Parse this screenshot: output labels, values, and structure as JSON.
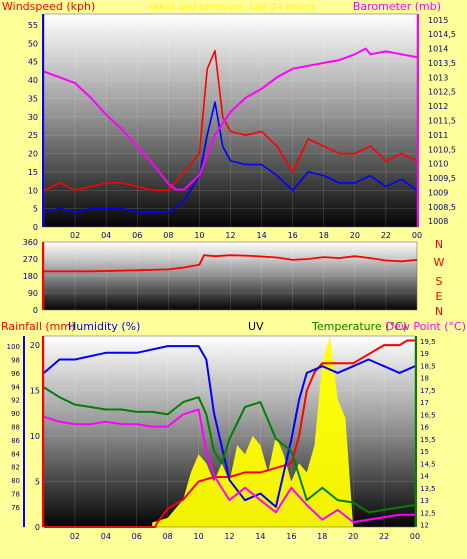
{
  "palette": {
    "background": "#ffff99",
    "wind_avg": "#0000ff",
    "wind_gust": "#ff0000",
    "barometer": "#ff00ff",
    "direction": "#ff0000",
    "rainfall": "#ff0000",
    "humidity": "#0000ff",
    "uv": "#ffff00",
    "temperature": "#008000",
    "dew_point": "#ff00ff",
    "tick_text": "#000080",
    "left_axis": "#0000ff",
    "right_axis": "#ff00ff"
  },
  "chart_data": [
    {
      "type": "line",
      "panel": "wind-barometer",
      "left_axis_label": "Windspeed (kph)",
      "right_axis_label": "Barometer (mb)",
      "center_title": "Wind and pressure, last 24 hours",
      "x_ticks": [
        "02",
        "04",
        "06",
        "08",
        "10",
        "12",
        "14",
        "16",
        "18",
        "20",
        "22",
        "00"
      ],
      "x_range": [
        0,
        24
      ],
      "left_ylim": [
        0,
        58
      ],
      "left_ticks": [
        0,
        5,
        10,
        15,
        20,
        25,
        30,
        35,
        40,
        45,
        50,
        55
      ],
      "right_ylim": [
        1007.8,
        1015.2
      ],
      "right_ticks": [
        "1008",
        "1008,5",
        "1009",
        "1009,5",
        "1010",
        "1010,5",
        "1011",
        "1011,5",
        "1012",
        "1012,5",
        "1013",
        "1013,5",
        "1014",
        "1014,5",
        "1015"
      ],
      "series": [
        {
          "key": "gust",
          "axis": "left",
          "x": [
            0,
            1,
            2,
            3,
            4,
            5,
            6,
            7,
            8,
            9,
            10,
            10.5,
            11,
            11.5,
            12,
            13,
            14,
            15,
            16,
            17,
            18,
            19,
            20,
            21,
            22,
            23,
            24
          ],
          "y": [
            10,
            12,
            10,
            11,
            12,
            12,
            11,
            10,
            10,
            15,
            20,
            43,
            48,
            30,
            26,
            25,
            26,
            22,
            15,
            24,
            22,
            20,
            20,
            22,
            18,
            20,
            18
          ]
        },
        {
          "key": "average",
          "axis": "left",
          "x": [
            0,
            1,
            2,
            3,
            4,
            5,
            6,
            7,
            8,
            9,
            10,
            10.5,
            11,
            11.5,
            12,
            13,
            14,
            15,
            16,
            17,
            18,
            19,
            20,
            21,
            22,
            23,
            24
          ],
          "y": [
            4,
            5,
            4,
            5,
            5,
            5,
            4,
            4,
            4,
            7,
            14,
            25,
            34,
            22,
            18,
            17,
            17,
            14,
            10,
            15,
            14,
            12,
            12,
            14,
            11,
            13,
            10
          ]
        },
        {
          "key": "barometer",
          "axis": "right",
          "x": [
            0,
            1,
            2,
            3,
            4,
            5,
            6,
            7,
            8,
            8.5,
            9,
            10,
            11,
            12,
            13,
            14,
            15,
            16,
            17,
            18,
            19,
            20,
            20.7,
            21,
            22,
            23,
            24
          ],
          "y": [
            1013.2,
            1013,
            1012.8,
            1012.3,
            1011.7,
            1011.2,
            1010.6,
            1010,
            1009.3,
            1009.1,
            1009.1,
            1009.6,
            1011,
            1011.8,
            1012.3,
            1012.6,
            1013,
            1013.3,
            1013.4,
            1013.5,
            1013.6,
            1013.8,
            1014,
            1013.8,
            1013.9,
            1013.8,
            1013.7
          ]
        }
      ]
    },
    {
      "type": "line",
      "panel": "wind-direction",
      "left_ticks": [
        0,
        90,
        180,
        270,
        360
      ],
      "left_ylim": [
        0,
        360
      ],
      "compass_labels": [
        "N",
        "W",
        "S",
        "E",
        "N"
      ],
      "x_range": [
        0,
        24
      ],
      "series": [
        {
          "key": "direction",
          "x": [
            0,
            3,
            6,
            8,
            9,
            10,
            10.3,
            11,
            12,
            13,
            14,
            15,
            16,
            17,
            18,
            19,
            20,
            21,
            22,
            23,
            24
          ],
          "y": [
            205,
            205,
            210,
            215,
            225,
            240,
            290,
            285,
            290,
            288,
            283,
            278,
            265,
            270,
            280,
            275,
            285,
            275,
            262,
            258,
            265
          ]
        }
      ]
    },
    {
      "type": "line",
      "panel": "rain-humidity-uv-temperature",
      "label_rainfall": "Rainfall (mm)",
      "label_humidity": "Humidity (%)",
      "label_uv": "UV",
      "label_temperature": "Temperature (°C)",
      "label_dewpoint": "Dew Point (°C)",
      "x_ticks": [
        "02",
        "04",
        "06",
        "08",
        "10",
        "12",
        "14",
        "16",
        "18",
        "20",
        "22",
        "00"
      ],
      "x_range": [
        0,
        24
      ],
      "rain_ylim": [
        0,
        21
      ],
      "rain_ticks": [
        0,
        5,
        10,
        15,
        20
      ],
      "humidity_ylim": [
        73,
        101.5
      ],
      "humidity_ticks": [
        76,
        78,
        80,
        82,
        84,
        86,
        88,
        90,
        92,
        94,
        96,
        98,
        100
      ],
      "temp_ylim": [
        11.9,
        19.7
      ],
      "temp_ticks": [
        "12",
        "12,5",
        "13",
        "13,5",
        "14",
        "14,5",
        "15",
        "15,5",
        "16",
        "16,5",
        "17",
        "17,5",
        "18",
        "18,5",
        "19",
        "19,5"
      ],
      "series": [
        {
          "key": "rainfall",
          "axis": "rain",
          "x": [
            0,
            7.2,
            7.3,
            8,
            9,
            10,
            11,
            12,
            13,
            14,
            15,
            16,
            16.5,
            17,
            17.5,
            18,
            19,
            20,
            21,
            22,
            23,
            23.5,
            24
          ],
          "y": [
            0,
            0,
            0.4,
            2,
            3,
            5,
            5.5,
            5.5,
            6,
            6,
            6.5,
            7,
            10,
            15,
            17,
            18,
            18,
            18,
            19,
            20,
            20,
            20.5,
            20.5
          ]
        },
        {
          "key": "humidity",
          "axis": "humidity",
          "x": [
            0,
            1,
            2,
            4,
            6,
            8,
            9,
            10,
            10.5,
            11,
            11.5,
            12,
            13,
            14,
            15,
            16,
            16.5,
            17,
            18,
            19,
            20,
            21,
            22,
            23,
            24
          ],
          "y": [
            96,
            98,
            98,
            99,
            99,
            100,
            100,
            100,
            98,
            90,
            85,
            80,
            77,
            78,
            76,
            86,
            92,
            96,
            97,
            96,
            97,
            98,
            97,
            96,
            97
          ]
        },
        {
          "key": "temperature",
          "axis": "temp",
          "x": [
            0,
            1,
            2,
            3,
            4,
            5,
            6,
            7,
            8,
            9,
            10,
            10.5,
            11,
            11.5,
            12,
            13,
            14,
            15,
            16,
            17,
            18,
            19,
            20,
            21,
            22,
            23,
            24
          ],
          "y": [
            17.6,
            17.2,
            16.9,
            16.8,
            16.7,
            16.7,
            16.6,
            16.6,
            16.5,
            17,
            17.2,
            16.5,
            15,
            14.5,
            15.5,
            16.8,
            17,
            15.5,
            15,
            13,
            13.5,
            13,
            12.9,
            12.5,
            12.6,
            12.7,
            12.8
          ]
        },
        {
          "key": "dewpoint",
          "axis": "temp",
          "x": [
            0,
            1,
            2,
            3,
            4,
            5,
            6,
            7,
            8,
            9,
            10,
            10.5,
            11,
            12,
            13,
            14,
            15,
            16,
            17,
            18,
            19,
            20,
            21,
            22,
            23,
            24
          ],
          "y": [
            16.4,
            16.2,
            16.1,
            16.1,
            16.2,
            16.1,
            16.1,
            16,
            16,
            16.5,
            16.7,
            15,
            14,
            13,
            13.5,
            13,
            12.5,
            13.5,
            12.8,
            12.2,
            12.6,
            12.1,
            12.2,
            12.3,
            12.4,
            12.4
          ]
        },
        {
          "key": "uv",
          "axis": "rain",
          "x": [
            7,
            8,
            9,
            9.5,
            10,
            10.5,
            11,
            11.5,
            12,
            12.5,
            13,
            13.5,
            14,
            14.5,
            15,
            15.5,
            16,
            16.5,
            17,
            17.5,
            18,
            18.5,
            19,
            19.5,
            20
          ],
          "y": [
            0.5,
            1,
            3,
            6,
            8,
            7,
            5,
            7,
            5,
            9,
            8,
            10,
            9,
            6,
            10,
            8,
            5,
            7,
            6,
            9,
            18,
            21,
            14,
            12,
            0
          ]
        }
      ]
    }
  ]
}
